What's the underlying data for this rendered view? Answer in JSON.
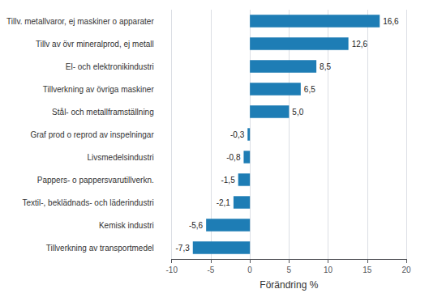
{
  "chart_data": {
    "type": "bar",
    "orientation": "horizontal",
    "categories": [
      "Tillverkning av transportmedel",
      "Kemisk industri",
      "Textil-, beklädnads- och läderindustri",
      "Pappers- o pappersvarutillverkn.",
      "Livsmedelsindustri",
      "Graf prod o reprod av inspelningar",
      "Stål- och metallframställning",
      "Tillverkning av övriga maskiner",
      "El- och elektronikindustri",
      "Tillv av övr mineralprod, ej metall",
      "Tillv. metallvaror, ej maskiner o apparater"
    ],
    "values": [
      -7.3,
      -5.6,
      -2.1,
      -1.5,
      -0.8,
      -0.3,
      5.0,
      6.5,
      8.5,
      12.6,
      16.6
    ],
    "value_labels": [
      "-7,3",
      "-5,6",
      "-2,1",
      "-1,5",
      "-0,8",
      "-0,3",
      "5,0",
      "6,5",
      "8,5",
      "12,6",
      "16,6"
    ],
    "data_labels": true,
    "color": "#1e7db5",
    "xlabel": "Förändring %",
    "xlim": [
      -10,
      20
    ],
    "xticks": [
      -10,
      -5,
      0,
      5,
      10,
      15,
      20
    ],
    "grid": true
  }
}
